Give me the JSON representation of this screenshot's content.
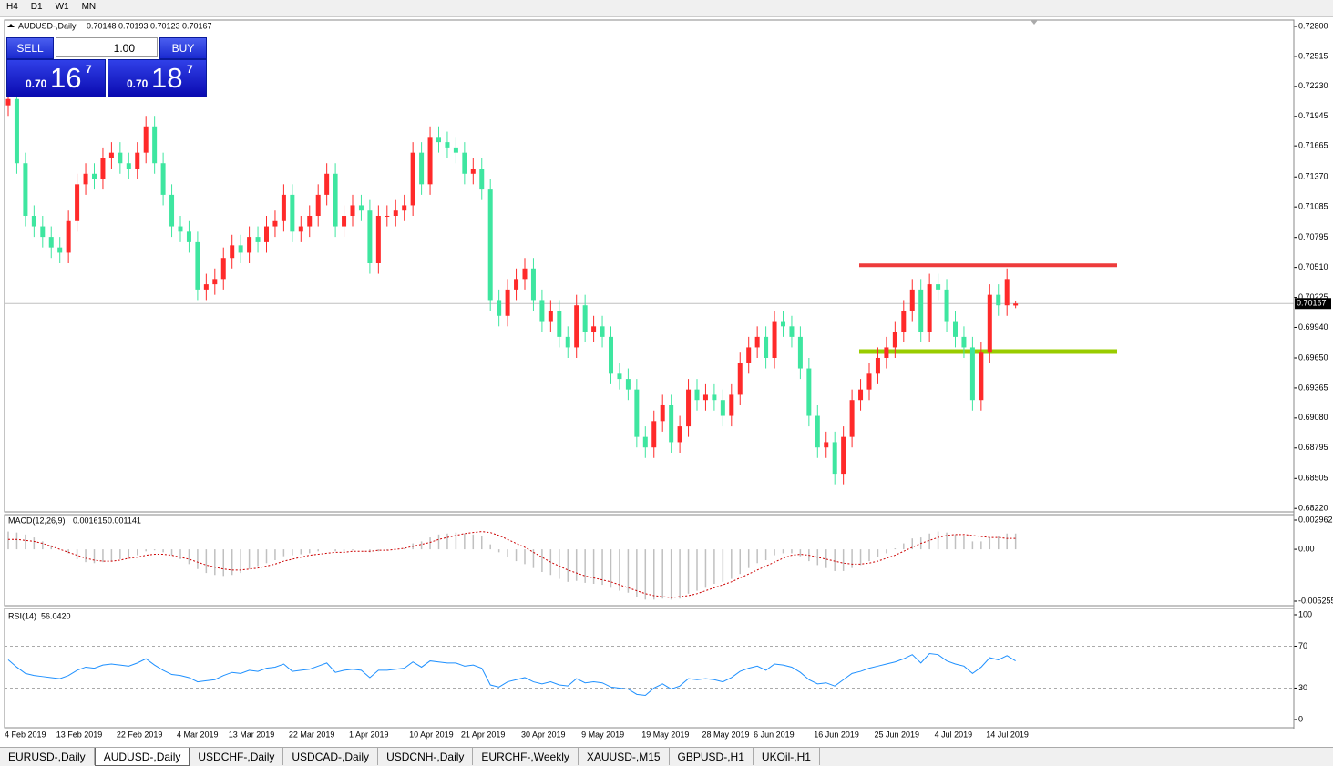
{
  "toolbar": {
    "timeframes": [
      "H4",
      "D1",
      "W1",
      "MN"
    ]
  },
  "trade_panel": {
    "sell": "SELL",
    "buy": "BUY",
    "volume": "1.00",
    "sell_big": "0.70",
    "sell_digits": "16",
    "sell_pip": "7",
    "buy_big": "0.70",
    "buy_digits": "18",
    "buy_pip": "7"
  },
  "tabs": [
    "EURUSD-,Daily",
    "AUDUSD-,Daily",
    "USDCHF-,Daily",
    "USDCAD-,Daily",
    "USDCNH-,Daily",
    "EURCHF-,Weekly",
    "XAUUSD-,M15",
    "GBPUSD-,H1",
    "UKOil-,H1"
  ],
  "active_tab": "AUDUSD-,Daily",
  "chart_data": [
    {
      "type": "candlestick",
      "title": "AUDUSD-,Daily",
      "last_ohlc": [
        0.70148,
        0.70193,
        0.70123,
        0.70167
      ],
      "categories": [
        "4 Feb 2019",
        null,
        null,
        null,
        null,
        null,
        "13 Feb 2019",
        null,
        null,
        null,
        null,
        null,
        null,
        "22 Feb 2019",
        null,
        null,
        null,
        null,
        null,
        null,
        "4 Mar 2019",
        null,
        null,
        null,
        null,
        null,
        "13 Mar 2019",
        null,
        null,
        null,
        null,
        null,
        null,
        "22 Mar 2019",
        null,
        null,
        null,
        null,
        null,
        null,
        "1 Apr 2019",
        null,
        null,
        null,
        null,
        null,
        null,
        "10 Apr 2019",
        null,
        null,
        null,
        null,
        null,
        "21 Apr 2019",
        null,
        null,
        null,
        null,
        null,
        null,
        "30 Apr 2019",
        null,
        null,
        null,
        null,
        null,
        null,
        "9 May 2019",
        null,
        null,
        null,
        null,
        null,
        null,
        "19 May 2019",
        null,
        null,
        null,
        null,
        null,
        null,
        "28 May 2019",
        null,
        null,
        null,
        null,
        null,
        "6 Jun 2019",
        null,
        null,
        null,
        null,
        null,
        null,
        "16 Jun 2019",
        null,
        null,
        null,
        null,
        null,
        null,
        "25 Jun 2019",
        null,
        null,
        null,
        null,
        null,
        null,
        "4 Jul 2019",
        null,
        null,
        null,
        null,
        null,
        "14 Jul 2019",
        null,
        null,
        null
      ],
      "open": [
        0.7205,
        0.7211,
        0.715,
        0.71,
        0.709,
        0.708,
        0.707,
        0.7065,
        0.7095,
        0.713,
        0.714,
        0.7135,
        0.7155,
        0.716,
        0.715,
        0.7145,
        0.716,
        0.7185,
        0.715,
        0.712,
        0.709,
        0.7085,
        0.7075,
        0.703,
        0.7035,
        0.704,
        0.706,
        0.7072,
        0.7065,
        0.708,
        0.7075,
        0.709,
        0.7095,
        0.712,
        0.7085,
        0.709,
        0.71,
        0.712,
        0.714,
        0.709,
        0.71,
        0.711,
        0.7105,
        0.7055,
        0.71,
        0.71,
        0.7105,
        0.711,
        0.716,
        0.713,
        0.7175,
        0.717,
        0.7165,
        0.716,
        0.714,
        0.7145,
        0.7125,
        0.702,
        0.7005,
        0.703,
        0.704,
        0.705,
        0.702,
        0.7,
        0.701,
        0.6985,
        0.6975,
        0.7015,
        0.699,
        0.6995,
        0.6985,
        0.695,
        0.6945,
        0.6935,
        0.689,
        0.688,
        0.6905,
        0.692,
        0.6885,
        0.69,
        0.6935,
        0.6925,
        0.693,
        0.6925,
        0.691,
        0.693,
        0.696,
        0.6975,
        0.6985,
        0.6965,
        0.7,
        0.6995,
        0.6985,
        0.6955,
        0.691,
        0.688,
        0.6885,
        0.6855,
        0.689,
        0.6925,
        0.6935,
        0.695,
        0.6965,
        0.6975,
        0.699,
        0.701,
        0.703,
        0.699,
        0.7035,
        0.703,
        0.7,
        0.6985,
        0.6975,
        0.6925,
        0.697,
        0.7025,
        0.7015,
        0.70148
      ],
      "high": [
        0.7221,
        0.7221,
        0.716,
        0.711,
        0.71,
        0.709,
        0.708,
        0.7105,
        0.714,
        0.715,
        0.715,
        0.7165,
        0.717,
        0.717,
        0.716,
        0.717,
        0.7195,
        0.7195,
        0.716,
        0.713,
        0.71,
        0.7095,
        0.7085,
        0.7045,
        0.705,
        0.707,
        0.7082,
        0.7082,
        0.709,
        0.709,
        0.71,
        0.7105,
        0.713,
        0.713,
        0.71,
        0.711,
        0.713,
        0.715,
        0.715,
        0.711,
        0.712,
        0.712,
        0.7115,
        0.711,
        0.711,
        0.7115,
        0.712,
        0.717,
        0.717,
        0.7185,
        0.7185,
        0.718,
        0.7175,
        0.717,
        0.7155,
        0.7155,
        0.7135,
        0.703,
        0.704,
        0.705,
        0.706,
        0.706,
        0.703,
        0.702,
        0.702,
        0.6995,
        0.7025,
        0.7025,
        0.7005,
        0.7005,
        0.6995,
        0.696,
        0.6955,
        0.6945,
        0.69,
        0.6915,
        0.693,
        0.693,
        0.691,
        0.6945,
        0.6945,
        0.694,
        0.694,
        0.6935,
        0.694,
        0.697,
        0.6985,
        0.6995,
        0.6995,
        0.701,
        0.701,
        0.7005,
        0.6995,
        0.6965,
        0.692,
        0.6895,
        0.6895,
        0.69,
        0.6935,
        0.6945,
        0.696,
        0.6975,
        0.6985,
        0.7,
        0.702,
        0.704,
        0.704,
        0.7045,
        0.7045,
        0.704,
        0.701,
        0.6995,
        0.6985,
        0.698,
        0.7035,
        0.7035,
        0.705,
        0.70193
      ],
      "low": [
        0.7195,
        0.714,
        0.709,
        0.708,
        0.707,
        0.706,
        0.7055,
        0.7055,
        0.7085,
        0.712,
        0.7125,
        0.7125,
        0.7145,
        0.714,
        0.7135,
        0.7135,
        0.715,
        0.714,
        0.711,
        0.708,
        0.7075,
        0.7065,
        0.702,
        0.702,
        0.7025,
        0.703,
        0.705,
        0.7055,
        0.7055,
        0.7065,
        0.7065,
        0.708,
        0.7085,
        0.7075,
        0.7075,
        0.708,
        0.709,
        0.711,
        0.708,
        0.708,
        0.709,
        0.7095,
        0.7045,
        0.7045,
        0.709,
        0.709,
        0.7095,
        0.71,
        0.712,
        0.712,
        0.716,
        0.7155,
        0.715,
        0.713,
        0.713,
        0.7115,
        0.701,
        0.6995,
        0.6995,
        0.702,
        0.703,
        0.701,
        0.699,
        0.699,
        0.6975,
        0.6965,
        0.6965,
        0.698,
        0.698,
        0.6975,
        0.694,
        0.6935,
        0.6925,
        0.688,
        0.687,
        0.687,
        0.6895,
        0.6875,
        0.6875,
        0.689,
        0.6915,
        0.6915,
        0.6915,
        0.69,
        0.69,
        0.692,
        0.695,
        0.6965,
        0.6955,
        0.6955,
        0.6985,
        0.6975,
        0.6945,
        0.69,
        0.687,
        0.687,
        0.6845,
        0.6845,
        0.688,
        0.6915,
        0.6925,
        0.694,
        0.6955,
        0.6965,
        0.698,
        0.7,
        0.698,
        0.698,
        0.702,
        0.699,
        0.6975,
        0.6965,
        0.6915,
        0.6915,
        0.696,
        0.7005,
        0.7005,
        0.70123
      ],
      "close": [
        0.7211,
        0.715,
        0.71,
        0.709,
        0.708,
        0.707,
        0.7065,
        0.7095,
        0.713,
        0.714,
        0.7135,
        0.7155,
        0.716,
        0.715,
        0.7145,
        0.716,
        0.7185,
        0.715,
        0.712,
        0.709,
        0.7085,
        0.7075,
        0.703,
        0.7035,
        0.704,
        0.706,
        0.7072,
        0.7065,
        0.708,
        0.7075,
        0.709,
        0.7095,
        0.712,
        0.7085,
        0.709,
        0.71,
        0.712,
        0.714,
        0.709,
        0.71,
        0.711,
        0.7105,
        0.7055,
        0.71,
        0.71,
        0.7105,
        0.711,
        0.716,
        0.713,
        0.7175,
        0.717,
        0.7165,
        0.716,
        0.714,
        0.7145,
        0.7125,
        0.702,
        0.7005,
        0.703,
        0.704,
        0.705,
        0.702,
        0.7,
        0.701,
        0.6985,
        0.6975,
        0.7015,
        0.699,
        0.6995,
        0.6985,
        0.695,
        0.6945,
        0.6935,
        0.689,
        0.688,
        0.6905,
        0.692,
        0.6885,
        0.69,
        0.6935,
        0.6925,
        0.693,
        0.6925,
        0.691,
        0.693,
        0.696,
        0.6975,
        0.6985,
        0.6965,
        0.7,
        0.6995,
        0.6985,
        0.6955,
        0.691,
        0.688,
        0.6885,
        0.6855,
        0.689,
        0.6925,
        0.6935,
        0.695,
        0.6965,
        0.6975,
        0.699,
        0.701,
        0.703,
        0.699,
        0.7035,
        0.703,
        0.7,
        0.6985,
        0.6975,
        0.6925,
        0.697,
        0.7025,
        0.7015,
        0.704,
        0.70167
      ],
      "up_color": "#ff2a2a",
      "down_color": "#3ee6a0",
      "ylim": [
        0.68196,
        0.72852
      ],
      "yticks": [
        {
          "value": 0.728,
          "label": "0.72800"
        },
        {
          "value": 0.72515,
          "label": "0.72515"
        },
        {
          "value": 0.7223,
          "label": "0.72230"
        },
        {
          "value": 0.71945,
          "label": "0.71945"
        },
        {
          "value": 0.71665,
          "label": "0.71665"
        },
        {
          "value": 0.7137,
          "label": "0.71370"
        },
        {
          "value": 0.71085,
          "label": "0.71085"
        },
        {
          "value": 0.70795,
          "label": "0.70795"
        },
        {
          "value": 0.7051,
          "label": "0.70510"
        },
        {
          "value": 0.70225,
          "label": "0.70225"
        },
        {
          "value": 0.6994,
          "label": "0.69940"
        },
        {
          "value": 0.6965,
          "label": "0.69650"
        },
        {
          "value": 0.69365,
          "label": "0.69365"
        },
        {
          "value": 0.6908,
          "label": "0.69080"
        },
        {
          "value": 0.68795,
          "label": "0.68795"
        },
        {
          "value": 0.68505,
          "label": "0.68505"
        },
        {
          "value": 0.6822,
          "label": "0.68220"
        }
      ],
      "levels": [
        {
          "value": 0.7053,
          "color": "#ee3b3b"
        },
        {
          "value": 0.6971,
          "color": "#99cc00"
        }
      ],
      "last_price": 0.70167
    },
    {
      "type": "macd",
      "title": "MACD(12,26,9)",
      "readings": [
        0.001615,
        0.001141
      ],
      "values": [
        0.0018,
        0.0017,
        0.0015,
        0.0012,
        0.0008,
        0.0004,
        0.0,
        -0.0004,
        -0.001,
        -0.0013,
        -0.0014,
        -0.0013,
        -0.0012,
        -0.001,
        -0.0008,
        -0.0006,
        -0.0002,
        -0.0001,
        -0.0003,
        -0.0006,
        -0.001,
        -0.0015,
        -0.002,
        -0.0024,
        -0.0026,
        -0.0027,
        -0.0026,
        -0.0024,
        -0.002,
        -0.0017,
        -0.0014,
        -0.0011,
        -0.0007,
        -0.0006,
        -0.0005,
        -0.0004,
        -0.0002,
        0.0,
        -0.0002,
        -0.0002,
        -0.0001,
        0.0,
        -0.0003,
        -0.0002,
        -0.0001,
        0.0,
        0.0001,
        0.0006,
        0.0008,
        0.0012,
        0.0015,
        0.0016,
        0.0017,
        0.0016,
        0.0015,
        0.0013,
        0.0005,
        -0.0003,
        -0.0008,
        -0.0012,
        -0.0015,
        -0.0019,
        -0.0023,
        -0.0026,
        -0.003,
        -0.0033,
        -0.0032,
        -0.0034,
        -0.0035,
        -0.0036,
        -0.0039,
        -0.0042,
        -0.0044,
        -0.0048,
        -0.0051,
        -0.0051,
        -0.005,
        -0.0051,
        -0.005,
        -0.0045,
        -0.0042,
        -0.0039,
        -0.0035,
        -0.0033,
        -0.003,
        -0.0025,
        -0.0019,
        -0.0014,
        -0.0011,
        -0.0006,
        -0.0004,
        -0.0004,
        -0.0007,
        -0.0012,
        -0.0016,
        -0.0019,
        -0.0022,
        -0.0022,
        -0.0019,
        -0.0016,
        -0.0012,
        -0.0008,
        -0.0004,
        0.0001,
        0.0006,
        0.0011,
        0.0012,
        0.0016,
        0.0018,
        0.0017,
        0.0015,
        0.0013,
        0.0008,
        0.0008,
        0.0012,
        0.0013,
        0.0016,
        0.0016
      ],
      "signal": [
        0.001,
        0.001,
        0.0009,
        0.0008,
        0.0006,
        0.0003,
        0.0,
        -0.0003,
        -0.0006,
        -0.0009,
        -0.0011,
        -0.0012,
        -0.0012,
        -0.0011,
        -0.0009,
        -0.0008,
        -0.0006,
        -0.0005,
        -0.0005,
        -0.0006,
        -0.0008,
        -0.001,
        -0.0013,
        -0.0016,
        -0.0018,
        -0.002,
        -0.0021,
        -0.0021,
        -0.002,
        -0.0019,
        -0.0017,
        -0.0015,
        -0.0012,
        -0.001,
        -0.0008,
        -0.0006,
        -0.0005,
        -0.0004,
        -0.0003,
        -0.0003,
        -0.0002,
        -0.0002,
        -0.0002,
        -0.0001,
        -0.0001,
        0.0,
        0.0001,
        0.0003,
        0.0005,
        0.0007,
        0.001,
        0.0012,
        0.0014,
        0.0016,
        0.0017,
        0.0018,
        0.0017,
        0.0014,
        0.001,
        0.0006,
        0.0002,
        -0.0003,
        -0.0008,
        -0.0013,
        -0.0017,
        -0.0021,
        -0.0024,
        -0.0027,
        -0.0029,
        -0.0031,
        -0.0033,
        -0.0036,
        -0.0039,
        -0.0042,
        -0.0045,
        -0.0047,
        -0.0048,
        -0.0049,
        -0.0048,
        -0.0047,
        -0.0045,
        -0.0042,
        -0.0039,
        -0.0036,
        -0.0033,
        -0.0029,
        -0.0025,
        -0.0021,
        -0.0017,
        -0.0013,
        -0.0009,
        -0.0006,
        -0.0005,
        -0.0006,
        -0.0008,
        -0.001,
        -0.0012,
        -0.0014,
        -0.0015,
        -0.0015,
        -0.0014,
        -0.0012,
        -0.0009,
        -0.0006,
        -0.0002,
        0.0002,
        0.0006,
        0.0009,
        0.0012,
        0.0014,
        0.0015,
        0.0015,
        0.0014,
        0.0013,
        0.0012,
        0.0012,
        0.0011,
        0.0011
      ],
      "color": "#c0c0c0",
      "signal_color": "#cc0000",
      "ylim": [
        -0.005624,
        0.003424
      ],
      "yticks": [
        0.002962,
        {
          "value": 0,
          "label": "0.00"
        },
        -0.005255
      ]
    },
    {
      "type": "rsi",
      "title": "RSI(14)",
      "reading": "56.0420",
      "values": [
        57,
        50,
        44,
        42,
        41,
        40,
        39,
        42,
        47,
        50,
        49,
        52,
        53,
        52,
        51,
        54,
        58,
        52,
        47,
        43,
        42,
        40,
        36,
        37,
        38,
        42,
        45,
        44,
        47,
        46,
        49,
        50,
        53,
        46,
        47,
        48,
        51,
        54,
        45,
        47,
        48,
        47,
        40,
        47,
        47,
        48,
        49,
        55,
        50,
        56,
        55,
        54,
        54,
        51,
        52,
        49,
        33,
        31,
        36,
        38,
        40,
        36,
        34,
        36,
        33,
        32,
        39,
        35,
        36,
        35,
        31,
        30,
        29,
        24,
        23,
        30,
        34,
        29,
        32,
        39,
        38,
        39,
        38,
        36,
        40,
        46,
        49,
        51,
        47,
        53,
        52,
        50,
        45,
        38,
        34,
        35,
        32,
        38,
        44,
        46,
        49,
        51,
        53,
        55,
        58,
        62,
        54,
        63,
        62,
        56,
        53,
        51,
        44,
        50,
        59,
        57,
        61,
        56.042
      ],
      "color": "#1e90ff",
      "ylim": [
        -7,
        105.2
      ],
      "yticks": [
        100,
        70,
        30,
        0
      ],
      "levels": [
        70,
        30
      ]
    }
  ]
}
